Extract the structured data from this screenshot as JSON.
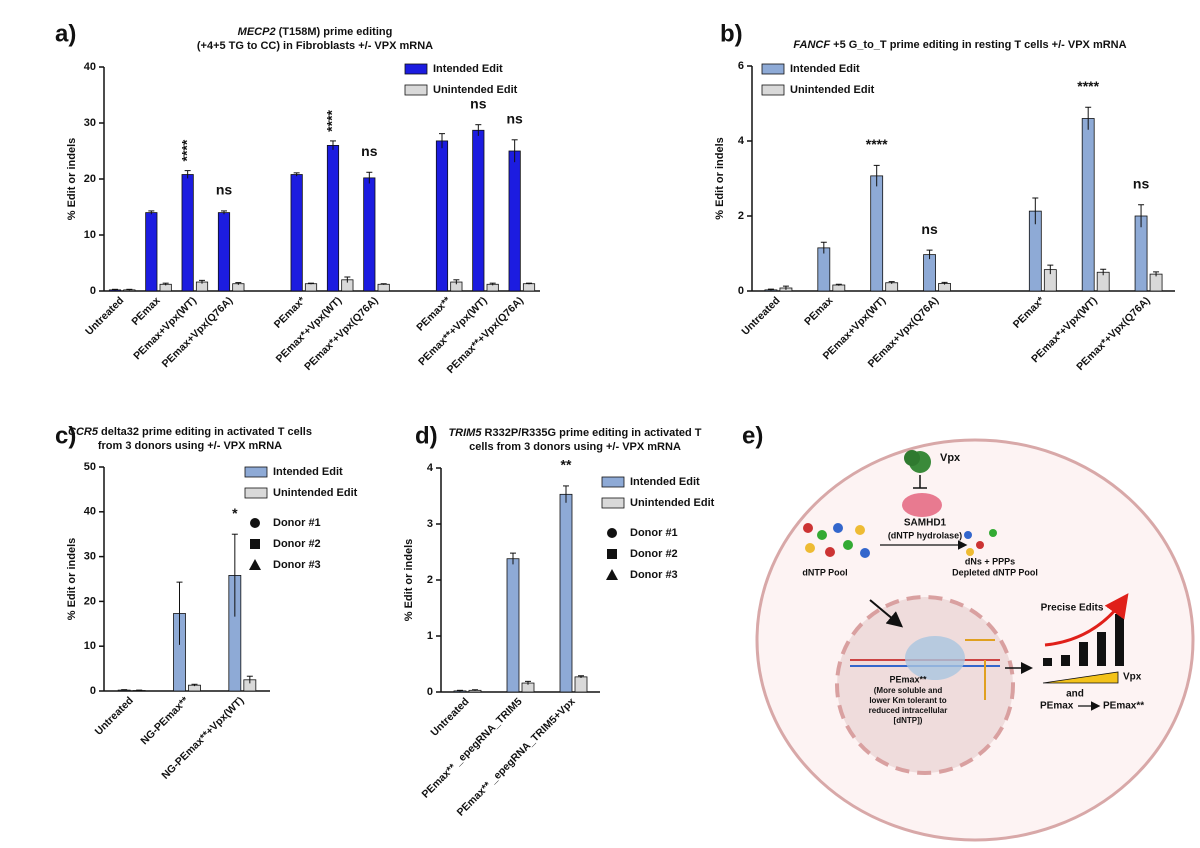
{
  "chart_data": [
    {
      "type": "bar",
      "panel": "a)",
      "title_gene": "MECP2",
      "title": "(T158M) prime editing",
      "subtitle": "(+4+5 TG to CC) in Fibroblasts +/- VPX mRNA",
      "ylabel": "% Edit or indels",
      "categories": [
        "Untreated",
        "PEmax",
        "PEmax+Vpx(WT)",
        "PEmax+Vpx(Q76A)",
        null,
        "PEmax*",
        "PEmax*+Vpx(WT)",
        "PEmax*+Vpx(Q76A)",
        null,
        "PEmax**",
        "PEmax**+Vpx(WT)",
        "PEmax**+Vpx(Q76A)"
      ],
      "series": [
        {
          "name": "Intended Edit",
          "color": "#1c1ce0",
          "values": [
            0.2,
            14,
            20.8,
            14,
            null,
            20.8,
            26,
            20.2,
            null,
            26.8,
            28.7,
            25
          ],
          "errors": [
            0.1,
            0.3,
            0.7,
            0.3,
            null,
            0.3,
            0.8,
            1.0,
            null,
            1.3,
            1.0,
            2.0
          ]
        },
        {
          "name": "Unintended Edit",
          "color": "#d9d9d9",
          "values": [
            0.2,
            1.2,
            1.6,
            1.3,
            null,
            1.3,
            2.0,
            1.2,
            null,
            1.6,
            1.2,
            1.3
          ],
          "errors": [
            0.1,
            0.2,
            0.3,
            0.2,
            null,
            0.1,
            0.5,
            0.1,
            null,
            0.4,
            0.2,
            0.1
          ]
        }
      ],
      "significance": [
        null,
        null,
        "****",
        "ns",
        null,
        null,
        "****",
        "ns",
        null,
        null,
        "ns",
        "ns"
      ],
      "rotate_stars": true,
      "ylim": [
        0,
        40
      ],
      "yticks": [
        0,
        10,
        20,
        30,
        40
      ],
      "legend": "upper right"
    },
    {
      "type": "bar",
      "panel": "b)",
      "title_gene": "FANCF",
      "title": "+5 G_to_T prime editing in resting T cells +/- VPX mRNA",
      "ylabel": "% Edit or indels",
      "categories": [
        "Untreated",
        "PEmax",
        "PEmax+Vpx(WT)",
        "PEmax+Vpx(Q76A)",
        null,
        "PEmax*",
        "PEmax*+Vpx(WT)",
        "PEmax*+Vpx(Q76A)"
      ],
      "series": [
        {
          "name": "Intended Edit",
          "color": "#8eaad6",
          "values": [
            0.03,
            1.15,
            3.07,
            0.97,
            null,
            2.13,
            4.6,
            2.0
          ],
          "errors": [
            0.02,
            0.15,
            0.28,
            0.12,
            null,
            0.35,
            0.3,
            0.3
          ]
        },
        {
          "name": "Unintended Edit",
          "color": "#d9d9d9",
          "values": [
            0.08,
            0.16,
            0.22,
            0.2,
            null,
            0.57,
            0.5,
            0.45
          ],
          "errors": [
            0.05,
            0.02,
            0.03,
            0.03,
            null,
            0.12,
            0.08,
            0.06
          ]
        }
      ],
      "significance": [
        null,
        null,
        "****",
        "ns",
        null,
        null,
        "****",
        "ns"
      ],
      "ylim": [
        0,
        6
      ],
      "yticks": [
        0,
        2,
        4,
        6
      ],
      "legend": "upper left"
    },
    {
      "type": "bar",
      "panel": "c)",
      "title_gene": "CCR5",
      "title": "delta32 prime editing in activated T cells",
      "subtitle": "from 3 donors using +/- VPX mRNA",
      "ylabel": "% Edit or indels",
      "categories": [
        "Untreated",
        "NG-PEmax**",
        "NG-PEmax**+Vpx(WT)"
      ],
      "series": [
        {
          "name": "Intended Edit",
          "color": "#8eaad6",
          "values": [
            0.2,
            17.3,
            25.8
          ],
          "errors": [
            0.1,
            7,
            9.2
          ]
        },
        {
          "name": "Unintended Edit",
          "color": "#d9d9d9",
          "values": [
            0.1,
            1.3,
            2.5
          ],
          "errors": [
            0.1,
            0.2,
            0.8
          ]
        }
      ],
      "markers": [
        {
          "name": "Donor #1",
          "shape": "circle"
        },
        {
          "name": "Donor #2",
          "shape": "square"
        },
        {
          "name": "Donor #3",
          "shape": "triangle"
        }
      ],
      "significance": [
        null,
        null,
        "*"
      ],
      "ylim": [
        0,
        50
      ],
      "yticks": [
        0,
        10,
        20,
        30,
        40,
        50
      ],
      "legend": "upper right"
    },
    {
      "type": "bar",
      "panel": "d)",
      "title_gene": "TRIM5",
      "title": "R332P/R335G prime editing in activated T",
      "subtitle": "cells from 3 donors using  +/- VPX mRNA",
      "ylabel": "% Edit or indels",
      "categories": [
        "Untreated",
        "PEmax** _epegRNA_TRIM5",
        "PEmax** _epegRNA_TRIM5+Vpx"
      ],
      "series": [
        {
          "name": "Intended Edit",
          "color": "#8eaad6",
          "values": [
            0.02,
            2.38,
            3.53
          ],
          "errors": [
            0.01,
            0.1,
            0.15
          ]
        },
        {
          "name": "Unintended Edit",
          "color": "#d9d9d9",
          "values": [
            0.03,
            0.16,
            0.27
          ],
          "errors": [
            0.01,
            0.03,
            0.02
          ]
        }
      ],
      "markers": [
        {
          "name": "Donor #1",
          "shape": "circle"
        },
        {
          "name": "Donor #2",
          "shape": "square"
        },
        {
          "name": "Donor #3",
          "shape": "triangle"
        }
      ],
      "significance": [
        null,
        null,
        "**"
      ],
      "ylim": [
        0,
        4
      ],
      "yticks": [
        0,
        1,
        2,
        3,
        4
      ],
      "legend": "upper right"
    }
  ],
  "diagram": {
    "panel": "e)",
    "vpx": "Vpx",
    "enzyme": "SAMHD1",
    "enzyme_note": "(dNTP hydrolase)",
    "pool": "dNTP Pool",
    "products": "dNs  +  PPPs",
    "depleted": "Depleted dNTP Pool",
    "outcome": "Precise Edits",
    "gradient": "Vpx",
    "and": "and",
    "from": "PEmax",
    "to": "PEmax**",
    "editor": "PEmax**",
    "editor_notes": [
      "(More soluble and",
      "lower Km tolerant to",
      "reduced intracellular",
      "[dNTP])"
    ]
  }
}
